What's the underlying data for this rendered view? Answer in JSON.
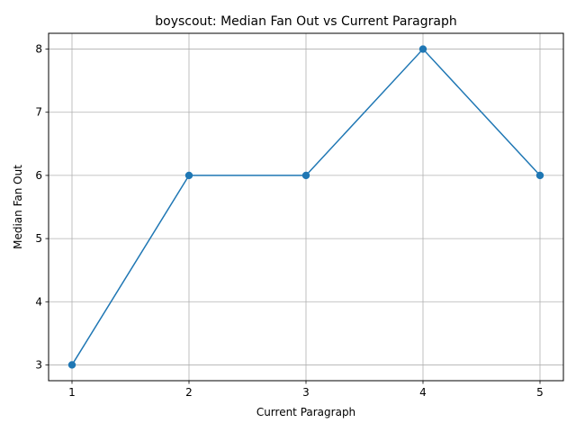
{
  "chart_data": {
    "type": "line",
    "title": "boyscout: Median Fan Out vs Current Paragraph",
    "xlabel": "Current Paragraph",
    "ylabel": "Median Fan Out",
    "x": [
      1,
      2,
      3,
      4,
      5
    ],
    "series": [
      {
        "values": [
          3,
          6,
          6,
          8,
          6
        ],
        "color": "#1f77b4",
        "marker": "circle"
      }
    ],
    "xlim": [
      0.8,
      5.2
    ],
    "ylim": [
      2.75,
      8.25
    ],
    "xticks": [
      1,
      2,
      3,
      4,
      5
    ],
    "yticks": [
      3,
      4,
      5,
      6,
      7,
      8
    ],
    "grid": true,
    "legend": "none"
  }
}
